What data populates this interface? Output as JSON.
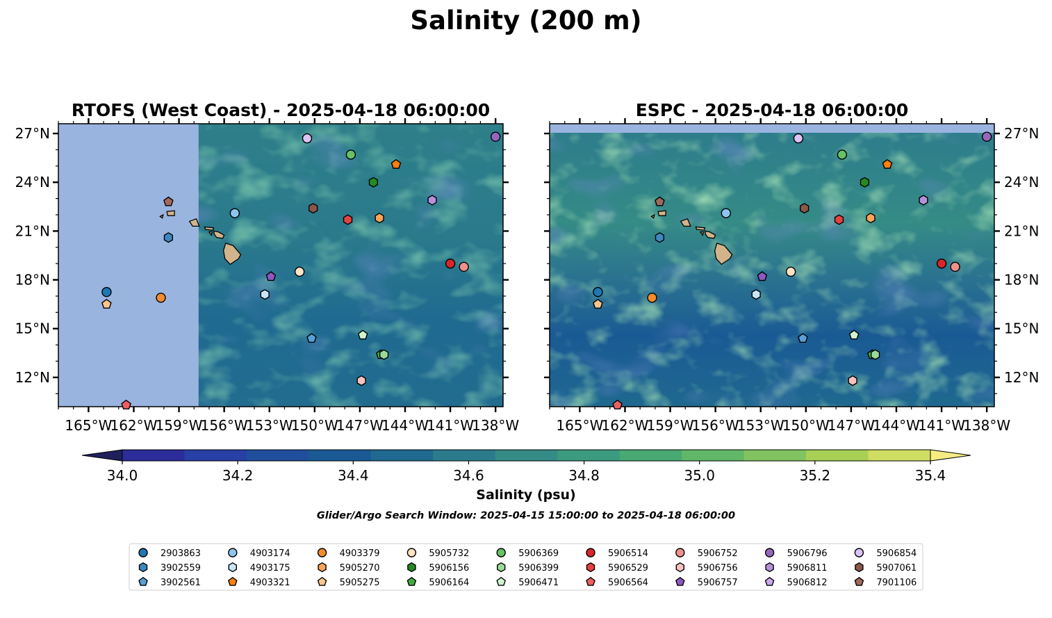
{
  "figure": {
    "title": "Salinity (200 m)",
    "search_window": "Glider/Argo Search Window: 2025-04-15 15:00:00 to 2025-04-18 06:00:00"
  },
  "panels": [
    {
      "title": "RTOFS (West Coast) - 2025-04-18 06:00:00",
      "lat_tick_side": "left"
    },
    {
      "title": "ESPC - 2025-04-18 06:00:00",
      "lat_tick_side": "right"
    }
  ],
  "colors": {
    "land": "#d2b48c",
    "no_data": "#9ab4e0",
    "colormap": [
      "#1f1f5c",
      "#2c2c9a",
      "#283fa5",
      "#1f4e9c",
      "#1a5a94",
      "#1f6990",
      "#2c7b8c",
      "#358b86",
      "#3c9a7e",
      "#49a973",
      "#5fb767",
      "#80c360",
      "#a7d055",
      "#cfdd62",
      "#f5ec84"
    ]
  },
  "chart_data": {
    "type": "scatter",
    "map_extent": {
      "lon": [
        -167,
        -137.5
      ],
      "lat": [
        10.2,
        27.6
      ]
    },
    "x_ticks": [
      "165°W",
      "162°W",
      "159°W",
      "156°W",
      "153°W",
      "150°W",
      "147°W",
      "144°W",
      "141°W",
      "138°W"
    ],
    "x_tick_values": [
      -165,
      -162,
      -159,
      -156,
      -153,
      -150,
      -147,
      -144,
      -141,
      -138
    ],
    "y_ticks": [
      "27°N",
      "24°N",
      "21°N",
      "18°N",
      "15°N",
      "12°N"
    ],
    "y_tick_values": [
      27,
      24,
      21,
      18,
      15,
      12
    ],
    "colorbar": {
      "label": "Salinity (psu)",
      "range": [
        34.0,
        35.4
      ],
      "ticks": [
        "34.0",
        "34.2",
        "34.4",
        "34.6",
        "34.8",
        "35.0",
        "35.2",
        "35.4"
      ],
      "tick_values": [
        34.0,
        34.2,
        34.4,
        34.6,
        34.8,
        35.0,
        35.2,
        35.4
      ],
      "extend": "both"
    },
    "rtofs_data_lon_min": -157.7,
    "floats": [
      {
        "id": "2903863",
        "marker": "circle",
        "color": "#1f77b4",
        "lon": -163.8,
        "lat": 17.25
      },
      {
        "id": "3902559",
        "marker": "hexagon",
        "color": "#3e88c0",
        "lon": -159.7,
        "lat": 20.6
      },
      {
        "id": "3902561",
        "marker": "pentagon",
        "color": "#5aa0d6",
        "lon": -150.2,
        "lat": 14.4
      },
      {
        "id": "4903174",
        "marker": "circle",
        "color": "#8ec5ee",
        "lon": -155.3,
        "lat": 22.1
      },
      {
        "id": "4903175",
        "marker": "hexagon",
        "color": "#c9e6f7",
        "lon": -153.3,
        "lat": 17.1
      },
      {
        "id": "4903321",
        "marker": "pentagon",
        "color": "#ff7f0e",
        "lon": -144.6,
        "lat": 25.1
      },
      {
        "id": "4903379",
        "marker": "circle",
        "color": "#f28c2c",
        "lon": -160.2,
        "lat": 16.9
      },
      {
        "id": "5905270",
        "marker": "hexagon",
        "color": "#fba35a",
        "lon": -145.7,
        "lat": 21.8
      },
      {
        "id": "5905275",
        "marker": "pentagon",
        "color": "#fdc58e",
        "lon": -163.8,
        "lat": 16.5
      },
      {
        "id": "5905732",
        "marker": "circle",
        "color": "#fde2c4",
        "lon": -151.0,
        "lat": 18.5
      },
      {
        "id": "5906156",
        "marker": "hexagon",
        "color": "#238b23",
        "lon": -146.1,
        "lat": 24.0
      },
      {
        "id": "5906164",
        "marker": "pentagon",
        "color": "#3fae3f",
        "lon": -145.6,
        "lat": 13.4
      },
      {
        "id": "5906369",
        "marker": "circle",
        "color": "#66c266",
        "lon": -147.6,
        "lat": 25.7
      },
      {
        "id": "5906399",
        "marker": "hexagon",
        "color": "#9bd99b",
        "lon": -145.4,
        "lat": 13.4
      },
      {
        "id": "5906471",
        "marker": "pentagon",
        "color": "#cff5cf",
        "lon": -146.8,
        "lat": 14.6
      },
      {
        "id": "5906514",
        "marker": "circle",
        "color": "#d62728",
        "lon": -141.0,
        "lat": 19.0
      },
      {
        "id": "5906529",
        "marker": "hexagon",
        "color": "#e5423f",
        "lon": -147.8,
        "lat": 21.7
      },
      {
        "id": "5906564",
        "marker": "pentagon",
        "color": "#ee6060",
        "lon": -162.5,
        "lat": 10.3
      },
      {
        "id": "5906752",
        "marker": "circle",
        "color": "#f08f8d",
        "lon": -140.1,
        "lat": 18.8
      },
      {
        "id": "5906756",
        "marker": "hexagon",
        "color": "#f7c1c0",
        "lon": -146.9,
        "lat": 11.8
      },
      {
        "id": "5906757",
        "marker": "pentagon",
        "color": "#8e58c0",
        "lon": -152.9,
        "lat": 18.2
      },
      {
        "id": "5906796",
        "marker": "circle",
        "color": "#9467bd",
        "lon": -138.0,
        "lat": 26.8
      },
      {
        "id": "5906811",
        "marker": "hexagon",
        "color": "#b691db",
        "lon": -142.2,
        "lat": 22.9
      },
      {
        "id": "5906812",
        "marker": "pentagon",
        "color": "#cba8ee",
        "lon": -150.5,
        "lat": 26.7
      },
      {
        "id": "5906854",
        "marker": "circle",
        "color": "#dcc4f5",
        "lon": -150.5,
        "lat": 26.7
      },
      {
        "id": "5907061",
        "marker": "hexagon",
        "color": "#8c564b",
        "lon": -150.1,
        "lat": 22.4
      },
      {
        "id": "7901106",
        "marker": "pentagon",
        "color": "#a0695c",
        "lon": -159.7,
        "lat": 22.8
      }
    ],
    "legend": {
      "columns": [
        [
          "2903863",
          "3902559",
          "3902561"
        ],
        [
          "4903174",
          "4903175",
          "4903321"
        ],
        [
          "4903379",
          "5905270",
          "5905275"
        ],
        [
          "5905732",
          "5906156",
          "5906164"
        ],
        [
          "5906369",
          "5906399",
          "5906471"
        ],
        [
          "5906514",
          "5906529",
          "5906564"
        ],
        [
          "5906752",
          "5906756",
          "5906757"
        ],
        [
          "5906796",
          "5906811",
          "5906812"
        ],
        [
          "5906854",
          "5907061",
          "7901106"
        ]
      ],
      "placement": "bottom"
    }
  }
}
